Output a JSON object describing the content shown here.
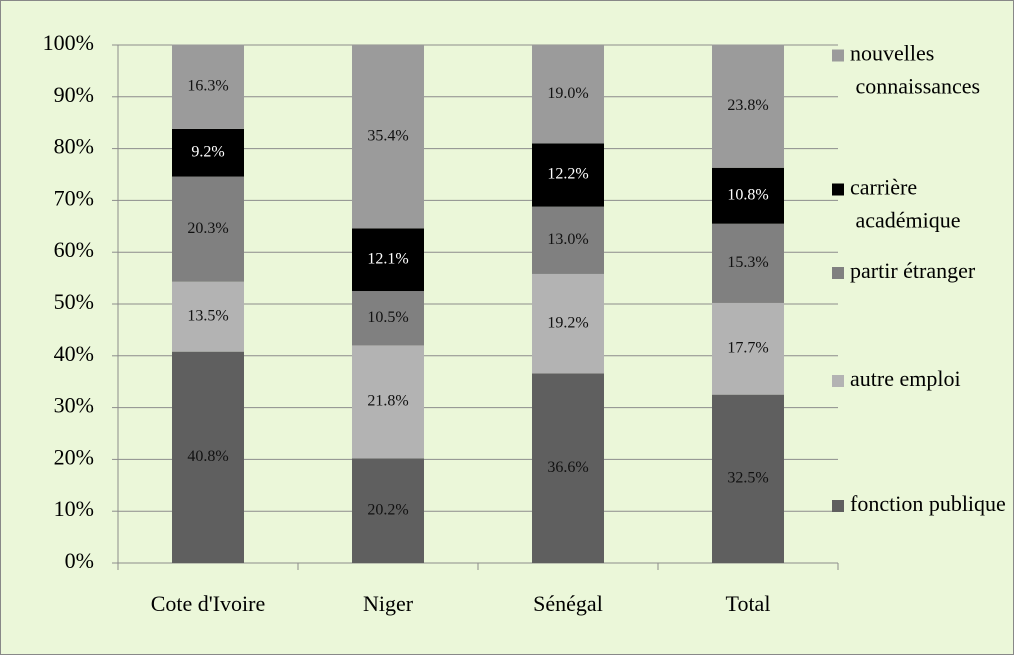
{
  "chart_data": {
    "type": "stacked_bar",
    "categories": [
      "Cote d'Ivoire",
      "Niger",
      "Sénégal",
      "Total"
    ],
    "series": [
      {
        "name": "fonction publique",
        "color": "#5f5f5f",
        "values": [
          40.8,
          20.2,
          36.6,
          32.5
        ],
        "value_labels": [
          "40.8%",
          "20.2%",
          "36.6%",
          "32.5%"
        ]
      },
      {
        "name": "autre emploi",
        "color": "#b3b3b3",
        "values": [
          13.5,
          21.8,
          19.2,
          17.7
        ],
        "value_labels": [
          "13.5%",
          "21.8%",
          "19.2%",
          "17.7%"
        ]
      },
      {
        "name": "partir étranger",
        "color": "#808080",
        "values": [
          20.3,
          10.5,
          13.0,
          15.3
        ],
        "value_labels": [
          "20.3%",
          "10.5%",
          "13.0%",
          "15.3%"
        ]
      },
      {
        "name": "carrière académique",
        "color": "#000000",
        "values": [
          9.2,
          12.1,
          12.2,
          10.8
        ],
        "value_labels": [
          "9.2%",
          "12.1%",
          "12.2%",
          "10.8%"
        ]
      },
      {
        "name": "nouvelles connaissances",
        "color": "#9b9b9b",
        "values": [
          16.3,
          35.4,
          19.0,
          23.8
        ],
        "value_labels": [
          "16.3%",
          "35.4%",
          "19.0%",
          "23.8%"
        ]
      }
    ],
    "ylim": [
      0,
      100
    ],
    "yticks": [
      {
        "value": 0,
        "label": "0%"
      },
      {
        "value": 10,
        "label": "10%"
      },
      {
        "value": 20,
        "label": "20%"
      },
      {
        "value": 30,
        "label": "30%"
      },
      {
        "value": 40,
        "label": "40%"
      },
      {
        "value": 50,
        "label": "50%"
      },
      {
        "value": 60,
        "label": "60%"
      },
      {
        "value": 70,
        "label": "70%"
      },
      {
        "value": 80,
        "label": "80%"
      },
      {
        "value": 90,
        "label": "90%"
      },
      {
        "value": 100,
        "label": "100%"
      }
    ],
    "grid": true,
    "legend": "right"
  }
}
